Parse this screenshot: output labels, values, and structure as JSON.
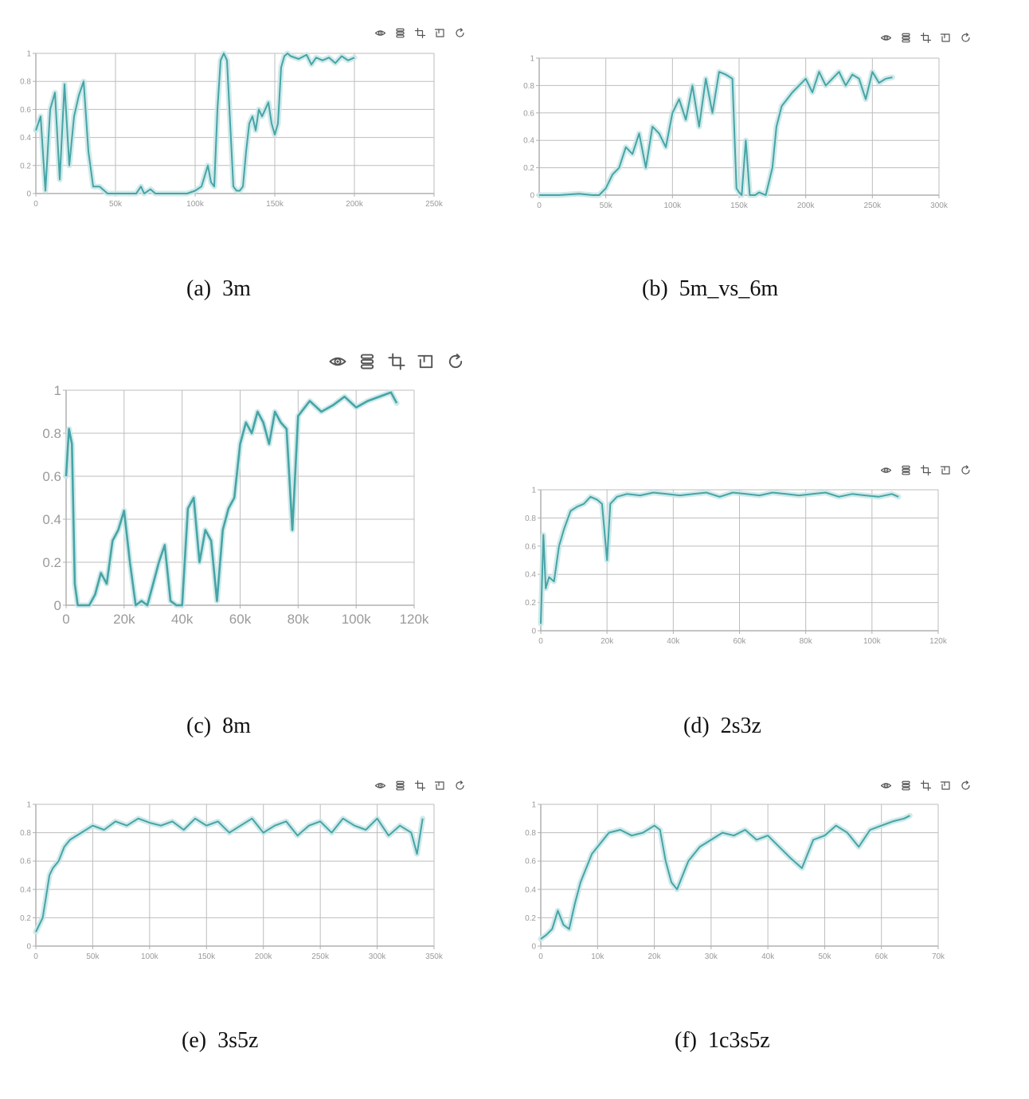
{
  "colors": {
    "line": "#46a4a6",
    "band": "#c9e6e6",
    "grid": "#bdbdbd",
    "axis": "#b0b0b0",
    "icon": "#555555"
  },
  "toolbar_icons": [
    "eye-icon",
    "layers-icon",
    "crop-icon",
    "restore-icon",
    "refresh-icon"
  ],
  "panels": [
    {
      "caption_label": "(a)",
      "caption_name": "3m",
      "chart_data": {
        "type": "line",
        "xticks": [
          "0",
          "50k",
          "100k",
          "150k",
          "200k",
          "250k"
        ],
        "xlim": [
          0,
          250000
        ],
        "yticks": [
          "0",
          "0.2",
          "0.4",
          "0.6",
          "0.8",
          "1"
        ],
        "ylim": [
          0,
          1
        ],
        "series": [
          {
            "x": [
              0,
              3000,
              6000,
              9000,
              12000,
              15000,
              18000,
              21000,
              24000,
              27000,
              30000,
              33000,
              36000,
              40000,
              45000,
              55000,
              63000,
              66000,
              68000,
              72000,
              75000,
              95000,
              100000,
              104000,
              108000,
              110000,
              112000,
              114000,
              116000,
              118000,
              120000,
              122000,
              124000,
              126000,
              128000,
              130000,
              132000,
              134000,
              136000,
              138000,
              140000,
              142000,
              144000,
              146000,
              148000,
              150000,
              152000,
              154000,
              156000,
              158000,
              160000,
              165000,
              170000,
              173000,
              176000,
              180000,
              184000,
              188000,
              192000,
              196000,
              200000
            ],
            "y": [
              0.45,
              0.55,
              0.02,
              0.6,
              0.72,
              0.1,
              0.78,
              0.2,
              0.55,
              0.7,
              0.8,
              0.3,
              0.05,
              0.05,
              0,
              0,
              0,
              0.05,
              0,
              0.03,
              0,
              0,
              0.02,
              0.05,
              0.2,
              0.08,
              0.05,
              0.6,
              0.95,
              1,
              0.95,
              0.5,
              0.05,
              0.02,
              0.02,
              0.05,
              0.3,
              0.5,
              0.55,
              0.45,
              0.6,
              0.55,
              0.6,
              0.65,
              0.5,
              0.42,
              0.5,
              0.9,
              0.98,
              1,
              0.98,
              0.96,
              0.99,
              0.92,
              0.97,
              0.95,
              0.97,
              0.93,
              0.98,
              0.95,
              0.97
            ]
          }
        ]
      }
    },
    {
      "caption_label": "(b)",
      "caption_name": "5m_vs_6m",
      "chart_data": {
        "type": "line",
        "xticks": [
          "0",
          "50k",
          "100k",
          "150k",
          "200k",
          "250k",
          "300k"
        ],
        "xlim": [
          0,
          300000
        ],
        "yticks": [
          "0",
          "0.2",
          "0.4",
          "0.6",
          "0.8",
          "1"
        ],
        "ylim": [
          0,
          1
        ],
        "series": [
          {
            "x": [
              0,
              15000,
              30000,
              40000,
              45000,
              50000,
              55000,
              60000,
              65000,
              70000,
              75000,
              80000,
              85000,
              90000,
              95000,
              100000,
              105000,
              110000,
              115000,
              120000,
              125000,
              130000,
              135000,
              140000,
              145000,
              148000,
              150000,
              152000,
              155000,
              158000,
              162000,
              165000,
              170000,
              175000,
              178000,
              182000,
              186000,
              190000,
              195000,
              200000,
              205000,
              210000,
              215000,
              220000,
              225000,
              230000,
              235000,
              240000,
              245000,
              250000,
              255000,
              260000,
              265000
            ],
            "y": [
              0,
              0,
              0.01,
              0,
              0,
              0.05,
              0.15,
              0.2,
              0.35,
              0.3,
              0.45,
              0.2,
              0.5,
              0.45,
              0.35,
              0.6,
              0.7,
              0.55,
              0.8,
              0.5,
              0.85,
              0.6,
              0.9,
              0.88,
              0.85,
              0.05,
              0.02,
              0,
              0.4,
              0,
              0,
              0.02,
              0,
              0.2,
              0.5,
              0.65,
              0.7,
              0.75,
              0.8,
              0.85,
              0.75,
              0.9,
              0.8,
              0.85,
              0.9,
              0.8,
              0.88,
              0.85,
              0.7,
              0.9,
              0.82,
              0.85,
              0.86
            ]
          }
        ]
      }
    },
    {
      "caption_label": "(c)",
      "caption_name": "8m",
      "chart_data": {
        "type": "line",
        "xticks": [
          "0",
          "20k",
          "40k",
          "60k",
          "80k",
          "100k",
          "120k"
        ],
        "xlim": [
          0,
          120000
        ],
        "yticks": [
          "0",
          "0.2",
          "0.4",
          "0.6",
          "0.8",
          "1"
        ],
        "ylim": [
          0,
          1
        ],
        "series": [
          {
            "x": [
              0,
              1000,
              2000,
              3000,
              4000,
              6000,
              8000,
              10000,
              12000,
              14000,
              16000,
              18000,
              20000,
              22000,
              24000,
              26000,
              28000,
              30000,
              32000,
              34000,
              36000,
              38000,
              40000,
              42000,
              44000,
              46000,
              48000,
              50000,
              52000,
              54000,
              56000,
              58000,
              60000,
              62000,
              64000,
              66000,
              68000,
              70000,
              72000,
              74000,
              76000,
              78000,
              80000,
              84000,
              88000,
              92000,
              96000,
              100000,
              104000,
              108000,
              112000,
              114000
            ],
            "y": [
              0.6,
              0.82,
              0.75,
              0.1,
              0,
              0,
              0,
              0.05,
              0.15,
              0.1,
              0.3,
              0.35,
              0.44,
              0.2,
              0,
              0.02,
              0,
              0.1,
              0.2,
              0.28,
              0.02,
              0,
              0,
              0.45,
              0.5,
              0.2,
              0.35,
              0.3,
              0.02,
              0.35,
              0.45,
              0.5,
              0.75,
              0.85,
              0.8,
              0.9,
              0.85,
              0.75,
              0.9,
              0.85,
              0.82,
              0.35,
              0.88,
              0.95,
              0.9,
              0.93,
              0.97,
              0.92,
              0.95,
              0.97,
              0.99,
              0.94
            ]
          }
        ]
      }
    },
    {
      "caption_label": "(d)",
      "caption_name": "2s3z",
      "chart_data": {
        "type": "line",
        "xticks": [
          "0",
          "20k",
          "40k",
          "60k",
          "80k",
          "100k",
          "120k"
        ],
        "xlim": [
          0,
          120000
        ],
        "yticks": [
          "0",
          "0.2",
          "0.4",
          "0.6",
          "0.8",
          "1"
        ],
        "ylim": [
          0,
          1
        ],
        "series": [
          {
            "x": [
              0,
              800,
              1500,
              2500,
              4000,
              5500,
              7000,
              9000,
              11000,
              13000,
              15000,
              17000,
              18500,
              20000,
              21000,
              23000,
              26000,
              30000,
              34000,
              38000,
              42000,
              46000,
              50000,
              54000,
              58000,
              62000,
              66000,
              70000,
              74000,
              78000,
              82000,
              86000,
              90000,
              94000,
              98000,
              102000,
              106000,
              108000
            ],
            "y": [
              0.05,
              0.68,
              0.3,
              0.38,
              0.35,
              0.6,
              0.72,
              0.85,
              0.88,
              0.9,
              0.95,
              0.93,
              0.9,
              0.5,
              0.9,
              0.95,
              0.97,
              0.96,
              0.98,
              0.97,
              0.96,
              0.97,
              0.98,
              0.95,
              0.98,
              0.97,
              0.96,
              0.98,
              0.97,
              0.96,
              0.97,
              0.98,
              0.95,
              0.97,
              0.96,
              0.95,
              0.97,
              0.95
            ]
          }
        ]
      }
    },
    {
      "caption_label": "(e)",
      "caption_name": "3s5z",
      "chart_data": {
        "type": "line",
        "xticks": [
          "0",
          "50k",
          "100k",
          "150k",
          "200k",
          "250k",
          "300k",
          "350k"
        ],
        "xlim": [
          0,
          350000
        ],
        "yticks": [
          "0",
          "0.2",
          "0.4",
          "0.6",
          "0.8",
          "1"
        ],
        "ylim": [
          0,
          1
        ],
        "series": [
          {
            "x": [
              0,
              3000,
              6000,
              9000,
              12000,
              15000,
              20000,
              25000,
              30000,
              40000,
              50000,
              60000,
              70000,
              80000,
              90000,
              100000,
              110000,
              120000,
              130000,
              140000,
              150000,
              160000,
              170000,
              180000,
              190000,
              200000,
              210000,
              220000,
              230000,
              240000,
              250000,
              260000,
              270000,
              280000,
              290000,
              300000,
              310000,
              320000,
              330000,
              335000,
              340000
            ],
            "y": [
              0.1,
              0.15,
              0.2,
              0.35,
              0.5,
              0.55,
              0.6,
              0.7,
              0.75,
              0.8,
              0.85,
              0.82,
              0.88,
              0.85,
              0.9,
              0.87,
              0.85,
              0.88,
              0.82,
              0.9,
              0.85,
              0.88,
              0.8,
              0.85,
              0.9,
              0.8,
              0.85,
              0.88,
              0.78,
              0.85,
              0.88,
              0.8,
              0.9,
              0.85,
              0.82,
              0.9,
              0.78,
              0.85,
              0.8,
              0.65,
              0.9
            ]
          }
        ]
      }
    },
    {
      "caption_label": "(f)",
      "caption_name": "1c3s5z",
      "chart_data": {
        "type": "line",
        "xticks": [
          "0",
          "10k",
          "20k",
          "30k",
          "40k",
          "50k",
          "60k",
          "70k"
        ],
        "xlim": [
          0,
          70000
        ],
        "yticks": [
          "0",
          "0.2",
          "0.4",
          "0.6",
          "0.8",
          "1"
        ],
        "ylim": [
          0,
          1
        ],
        "series": [
          {
            "x": [
              0,
              1000,
              2000,
              3000,
              4000,
              5000,
              6000,
              7000,
              8000,
              9000,
              10000,
              12000,
              14000,
              16000,
              18000,
              20000,
              21000,
              22000,
              23000,
              24000,
              25000,
              26000,
              28000,
              30000,
              32000,
              34000,
              36000,
              38000,
              40000,
              42000,
              44000,
              46000,
              48000,
              50000,
              52000,
              54000,
              56000,
              58000,
              60000,
              62000,
              64000,
              65000
            ],
            "y": [
              0.05,
              0.08,
              0.12,
              0.25,
              0.15,
              0.12,
              0.3,
              0.45,
              0.55,
              0.65,
              0.7,
              0.8,
              0.82,
              0.78,
              0.8,
              0.85,
              0.82,
              0.6,
              0.45,
              0.4,
              0.5,
              0.6,
              0.7,
              0.75,
              0.8,
              0.78,
              0.82,
              0.75,
              0.78,
              0.7,
              0.62,
              0.55,
              0.75,
              0.78,
              0.85,
              0.8,
              0.7,
              0.82,
              0.85,
              0.88,
              0.9,
              0.92
            ]
          }
        ]
      }
    }
  ]
}
